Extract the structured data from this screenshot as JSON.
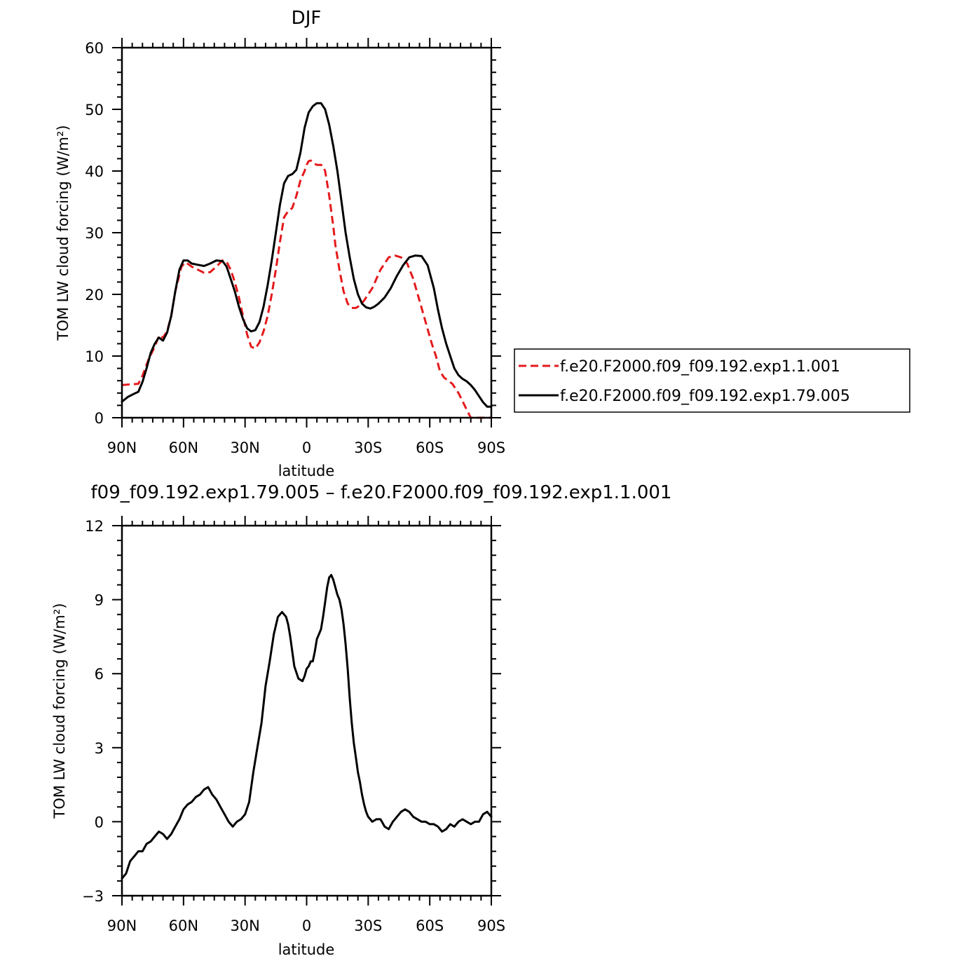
{
  "chart_data": [
    {
      "type": "line",
      "title": "DJF",
      "xlabel": "latitude",
      "ylabel": "TOM LW cloud forcing (W/m²)",
      "xlim": [
        90,
        -90
      ],
      "ylim": [
        0,
        60
      ],
      "x_ticks": [
        90,
        60,
        30,
        0,
        -30,
        -60,
        -90
      ],
      "x_tick_labels": [
        "90N",
        "60N",
        "30N",
        "0",
        "30S",
        "60S",
        "90S"
      ],
      "y_ticks": [
        0,
        10,
        20,
        30,
        40,
        50,
        60
      ],
      "y_tick_labels": [
        "0",
        "10",
        "20",
        "30",
        "40",
        "50",
        "60"
      ],
      "legend": "right",
      "series": [
        {
          "name": "f.e20.F2000.f09_f09.192.exp1.1.001",
          "color": "#e41a1c",
          "dash": "dashed",
          "x": [
            90,
            82,
            80,
            77,
            74,
            72,
            70,
            68,
            66,
            64,
            61,
            59,
            56,
            53,
            50,
            47,
            44,
            41,
            39,
            37,
            35,
            33,
            31,
            29,
            27,
            25,
            23,
            21,
            19,
            17,
            15,
            13,
            11,
            9,
            7,
            5,
            3,
            1,
            0,
            -1,
            -2,
            -3,
            -5,
            -7,
            -8,
            -9,
            -10,
            -11,
            -12,
            -13,
            -14,
            -16,
            -18,
            -20,
            -22,
            -24,
            -26,
            -28,
            -30,
            -32,
            -34,
            -36,
            -38,
            -40,
            -43,
            -46,
            -49,
            -52,
            -55,
            -58,
            -61,
            -63,
            -65,
            -67,
            -69,
            -71,
            -74,
            -77,
            -80,
            -83,
            -85,
            -87,
            -89,
            -90
          ],
          "y": [
            5.3,
            5.5,
            6.8,
            9.5,
            11.5,
            13.3,
            13.0,
            14.0,
            16.5,
            20.5,
            24.5,
            25.2,
            24.5,
            24.0,
            23.5,
            23.6,
            24.5,
            25.5,
            25.3,
            24.0,
            22.0,
            19.5,
            16.5,
            13.5,
            11.5,
            11.2,
            12.2,
            14.0,
            16.5,
            20.0,
            24.0,
            28.5,
            32.5,
            33.5,
            34.0,
            36.0,
            38.5,
            40.0,
            41.0,
            41.6,
            41.7,
            41.3,
            41.0,
            41.0,
            40.8,
            40.0,
            38.0,
            36.0,
            33.5,
            31.0,
            28.0,
            24.0,
            20.5,
            18.5,
            17.8,
            17.8,
            18.2,
            19.0,
            20.0,
            21.0,
            22.5,
            24.0,
            25.0,
            26.0,
            26.3,
            26.0,
            25.0,
            22.5,
            19.0,
            15.5,
            12.0,
            10.0,
            7.5,
            6.5,
            6.0,
            5.5,
            4.0,
            2.0,
            0,
            0,
            0,
            0,
            0,
            0
          ]
        },
        {
          "name": "f.e20.F2000.f09_f09.192.exp1.79.005",
          "color": "#000000",
          "dash": "solid",
          "x": [
            90,
            87,
            84,
            82,
            80,
            78,
            76,
            74,
            72,
            70,
            68,
            66,
            64,
            62,
            60,
            58,
            56,
            53,
            50,
            47,
            44,
            41,
            39,
            37,
            35,
            33,
            31,
            29,
            27,
            25,
            23,
            21,
            19,
            17,
            15,
            13,
            11,
            9,
            7,
            5,
            3,
            1,
            -1,
            -3,
            -5,
            -7,
            -9,
            -11,
            -13,
            -15,
            -17,
            -19,
            -21,
            -23,
            -25,
            -27,
            -29,
            -31,
            -33,
            -35,
            -38,
            -41,
            -44,
            -47,
            -50,
            -53,
            -56,
            -59,
            -62,
            -64,
            -66,
            -68,
            -70,
            -72,
            -74,
            -76,
            -78,
            -80,
            -82,
            -84,
            -86,
            -88,
            -90
          ],
          "y": [
            2.6,
            3.4,
            3.9,
            4.2,
            5.8,
            8.0,
            10.5,
            12.0,
            13.0,
            12.5,
            13.8,
            16.5,
            20.5,
            24.0,
            25.5,
            25.5,
            25.0,
            24.8,
            24.6,
            25.0,
            25.5,
            25.4,
            24.5,
            22.5,
            20.5,
            18.0,
            16.0,
            14.5,
            14.0,
            14.2,
            15.5,
            18.0,
            21.5,
            25.5,
            30.0,
            34.5,
            38.0,
            39.2,
            39.5,
            40.2,
            43.0,
            47.0,
            49.5,
            50.5,
            51.0,
            51.0,
            50.0,
            47.5,
            44.0,
            40.0,
            35.0,
            30.0,
            26.0,
            22.5,
            20.0,
            18.5,
            17.9,
            17.7,
            18.0,
            18.5,
            19.5,
            21.0,
            23.0,
            24.7,
            26.0,
            26.3,
            26.2,
            24.7,
            21.0,
            17.5,
            14.5,
            12.0,
            10.0,
            8.0,
            6.9,
            6.3,
            5.9,
            5.3,
            4.5,
            3.5,
            2.5,
            1.8,
            1.8
          ]
        }
      ]
    },
    {
      "type": "line",
      "title": "f09_f09.192.exp1.79.005 – f.e20.F2000.f09_f09.192.exp1.1.001",
      "xlabel": "latitude",
      "ylabel": "TOM LW cloud forcing (W/m²)",
      "xlim": [
        90,
        -90
      ],
      "ylim": [
        -3,
        12
      ],
      "x_ticks": [
        90,
        60,
        30,
        0,
        -30,
        -60,
        -90
      ],
      "x_tick_labels": [
        "90N",
        "60N",
        "30N",
        "0",
        "30S",
        "60S",
        "90S"
      ],
      "y_ticks": [
        -3,
        0,
        3,
        6,
        9,
        12
      ],
      "y_tick_labels": [
        "−3",
        "0",
        "3",
        "6",
        "9",
        "12"
      ],
      "series": [
        {
          "color": "#000000",
          "dash": "solid",
          "x": [
            90,
            88,
            86,
            84,
            82,
            80,
            78,
            76,
            74,
            72,
            70,
            68,
            66,
            64,
            62,
            60,
            58,
            56,
            54,
            52,
            50,
            48,
            46,
            44,
            42,
            40,
            38,
            36,
            34,
            32,
            30,
            28,
            26,
            24,
            22,
            20,
            18,
            16,
            14,
            12,
            10,
            9,
            8,
            6,
            4,
            2,
            1,
            0,
            -1,
            -2,
            -3,
            -4,
            -5,
            -6,
            -7,
            -8,
            -9,
            -10,
            -11,
            -12,
            -13,
            -14,
            -15,
            -16,
            -17,
            -18,
            -19,
            -20,
            -21,
            -22,
            -23,
            -24,
            -25,
            -26,
            -27,
            -28,
            -29,
            -30,
            -31,
            -32,
            -34,
            -36,
            -38,
            -40,
            -42,
            -44,
            -46,
            -48,
            -50,
            -52,
            -54,
            -56,
            -58,
            -60,
            -62,
            -64,
            -66,
            -68,
            -70,
            -72,
            -74,
            -76,
            -78,
            -80,
            -82,
            -84,
            -86,
            -88,
            -90
          ],
          "y": [
            -2.3,
            -2.1,
            -1.6,
            -1.4,
            -1.2,
            -1.2,
            -0.9,
            -0.8,
            -0.6,
            -0.4,
            -0.5,
            -0.7,
            -0.5,
            -0.2,
            0.1,
            0.5,
            0.7,
            0.8,
            1.0,
            1.1,
            1.3,
            1.4,
            1.1,
            0.9,
            0.6,
            0.3,
            0.0,
            -0.2,
            0.0,
            0.1,
            0.3,
            0.8,
            2.0,
            3.0,
            4.0,
            5.5,
            6.5,
            7.6,
            8.3,
            8.5,
            8.3,
            8.0,
            7.5,
            6.3,
            5.8,
            5.7,
            5.9,
            6.2,
            6.3,
            6.5,
            6.5,
            6.9,
            7.4,
            7.6,
            7.8,
            8.3,
            8.9,
            9.5,
            9.9,
            10.0,
            9.8,
            9.5,
            9.2,
            9.0,
            8.6,
            8.0,
            7.2,
            6.2,
            5.0,
            4.0,
            3.2,
            2.6,
            2.0,
            1.6,
            1.1,
            0.7,
            0.4,
            0.2,
            0.1,
            0.0,
            0.1,
            0.1,
            -0.2,
            -0.3,
            0.0,
            0.2,
            0.4,
            0.5,
            0.4,
            0.2,
            0.1,
            0.0,
            0.0,
            -0.1,
            -0.1,
            -0.2,
            -0.4,
            -0.3,
            -0.1,
            -0.2,
            0.0,
            0.1,
            0.0,
            -0.1,
            0.0,
            0.0,
            0.3,
            0.4,
            0.2
          ]
        }
      ]
    }
  ]
}
